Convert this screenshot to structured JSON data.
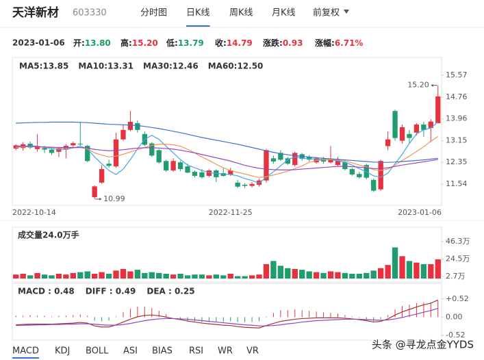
{
  "header": {
    "name": "天洋新材",
    "code": "603330",
    "tabs": [
      {
        "label": "分时图",
        "active": false
      },
      {
        "label": "日K线",
        "active": true
      },
      {
        "label": "周K线",
        "active": false
      },
      {
        "label": "月K线",
        "active": false
      },
      {
        "label": "前复权",
        "active": false
      }
    ]
  },
  "quote": {
    "date": "2023-01-06",
    "items": [
      {
        "label": "开:",
        "value": "13.80",
        "color": "#1a9e5f"
      },
      {
        "label": "高:",
        "value": "15.20",
        "color": "#e5323e"
      },
      {
        "label": "低:",
        "value": "13.79",
        "color": "#1a9e5f"
      },
      {
        "label": "收:",
        "value": "14.79",
        "color": "#e5323e"
      },
      {
        "label": "涨跌:",
        "value": "0.93",
        "color": "#e5323e"
      },
      {
        "label": "涨幅:",
        "value": "6.71%",
        "color": "#e5323e"
      }
    ]
  },
  "chart_data": [
    {
      "type": "candlestick",
      "categories": [
        "2022-10-14",
        null,
        null,
        null,
        null,
        null,
        null,
        null,
        null,
        null,
        null,
        null,
        null,
        null,
        null,
        null,
        null,
        null,
        null,
        null,
        null,
        null,
        null,
        null,
        null,
        null,
        null,
        null,
        null,
        null,
        "2022-11-25",
        null,
        null,
        null,
        null,
        null,
        null,
        null,
        null,
        null,
        null,
        null,
        null,
        null,
        null,
        null,
        null,
        null,
        null,
        null,
        null,
        null,
        null,
        null,
        null,
        null,
        null,
        null,
        null,
        "2023-01-06"
      ],
      "open": [
        12.86,
        12.88,
        13.04,
        12.84,
        12.88,
        12.82,
        12.74,
        12.82,
        12.98,
        13.04,
        12.96,
        11.06,
        11.6,
        12.3,
        12.2,
        13.2,
        13.55,
        13.8,
        13.4,
        13.05,
        12.8,
        12.4,
        12.05,
        12.35,
        12.2,
        12.0,
        11.98,
        11.85,
        12.05,
        11.95,
        11.9,
        11.6,
        11.52,
        11.48,
        11.52,
        11.68,
        12.5,
        12.7,
        12.5,
        12.25,
        12.65,
        12.55,
        12.35,
        12.48,
        12.35,
        12.25,
        12.35,
        12.1,
        11.92,
        12.25,
        11.7,
        11.35,
        12.95,
        14.25,
        13.15,
        13.4,
        13.45,
        13.75,
        13.62,
        13.8
      ],
      "high": [
        13.02,
        13.1,
        13.12,
        13.4,
        12.96,
        12.9,
        12.92,
        13.02,
        13.12,
        13.85,
        13.0,
        11.5,
        12.25,
        12.45,
        13.45,
        13.75,
        14.25,
        13.9,
        13.5,
        13.1,
        12.85,
        12.45,
        12.5,
        12.4,
        12.3,
        12.05,
        12.1,
        12.1,
        12.1,
        12.15,
        12.15,
        11.7,
        11.58,
        11.62,
        11.75,
        12.85,
        12.6,
        12.8,
        12.55,
        12.75,
        12.7,
        12.62,
        12.55,
        12.55,
        12.95,
        12.55,
        12.4,
        12.15,
        12.0,
        12.3,
        11.75,
        12.45,
        13.5,
        14.3,
        13.75,
        13.55,
        13.8,
        13.85,
        13.95,
        15.2
      ],
      "low": [
        12.8,
        12.78,
        12.84,
        12.75,
        12.7,
        12.62,
        12.55,
        12.5,
        12.92,
        12.96,
        12.35,
        10.99,
        11.55,
        12.15,
        12.15,
        13.15,
        13.5,
        13.45,
        12.95,
        12.55,
        12.3,
        12.0,
        12.0,
        12.02,
        11.95,
        11.8,
        11.75,
        11.8,
        11.62,
        11.82,
        11.85,
        11.4,
        11.4,
        11.42,
        11.45,
        11.6,
        12.3,
        12.4,
        12.25,
        12.2,
        12.42,
        12.38,
        12.3,
        12.3,
        12.3,
        12.2,
        12.05,
        11.85,
        11.75,
        11.72,
        11.25,
        11.3,
        12.8,
        13.15,
        13.05,
        13.05,
        13.35,
        13.3,
        13.1,
        13.79
      ],
      "close": [
        12.98,
        13.02,
        12.9,
        12.92,
        12.82,
        12.7,
        12.86,
        12.96,
        13.06,
        13.02,
        12.4,
        11.46,
        12.1,
        12.22,
        13.2,
        13.55,
        13.85,
        13.55,
        13.0,
        12.6,
        12.35,
        12.05,
        12.4,
        12.1,
        11.97,
        11.85,
        11.8,
        12.05,
        11.8,
        11.85,
        12.05,
        11.45,
        11.48,
        11.55,
        11.68,
        12.8,
        12.38,
        12.45,
        12.3,
        12.7,
        12.48,
        12.45,
        12.5,
        12.38,
        12.48,
        12.45,
        12.1,
        11.9,
        11.8,
        11.78,
        11.3,
        12.4,
        13.2,
        13.25,
        13.65,
        13.25,
        13.75,
        13.55,
        13.86,
        14.79
      ],
      "up_color": "#e5323e",
      "down_color": "#1f9d6e",
      "max_label": "15.20",
      "min_label": "10.99",
      "series": [
        {
          "name": "MA5:13.85",
          "color": "#3fa7e6",
          "values": [
            12.92,
            12.95,
            12.96,
            12.95,
            12.9,
            12.86,
            12.82,
            12.84,
            12.88,
            12.95,
            12.85,
            12.55,
            12.3,
            12.05,
            11.9,
            12.1,
            12.45,
            12.85,
            13.2,
            13.35,
            13.2,
            12.95,
            12.7,
            12.45,
            12.25,
            12.15,
            12.05,
            11.97,
            11.94,
            11.92,
            11.9,
            11.85,
            11.75,
            11.68,
            11.58,
            11.8,
            12.0,
            12.22,
            12.45,
            12.55,
            12.5,
            12.48,
            12.47,
            12.45,
            12.45,
            12.4,
            12.35,
            12.25,
            12.12,
            12.0,
            11.85,
            11.8,
            11.95,
            12.3,
            12.65,
            13.05,
            13.4,
            13.55,
            13.62,
            13.85
          ]
        },
        {
          "name": "MA10:13.31",
          "color": "#f0945a",
          "values": [
            12.9,
            12.92,
            12.93,
            12.92,
            12.91,
            12.9,
            12.88,
            12.88,
            12.89,
            12.9,
            12.85,
            12.7,
            12.62,
            12.55,
            12.58,
            12.65,
            12.73,
            12.82,
            12.9,
            12.98,
            13.02,
            13.02,
            13.0,
            12.95,
            12.83,
            12.7,
            12.55,
            12.42,
            12.28,
            12.15,
            12.05,
            11.98,
            11.92,
            11.85,
            11.79,
            11.82,
            11.88,
            11.95,
            12.02,
            12.12,
            12.22,
            12.35,
            12.42,
            12.44,
            12.45,
            12.43,
            12.4,
            12.33,
            12.25,
            12.18,
            12.08,
            12.05,
            12.1,
            12.25,
            12.42,
            12.58,
            12.75,
            12.93,
            13.13,
            13.31
          ]
        },
        {
          "name": "MA30:12.46",
          "color": "#9b45c2",
          "values": [
            12.95,
            12.95,
            12.94,
            12.93,
            12.92,
            12.91,
            12.9,
            12.9,
            12.9,
            12.9,
            12.88,
            12.83,
            12.8,
            12.78,
            12.79,
            12.82,
            12.85,
            12.88,
            12.89,
            12.89,
            12.88,
            12.86,
            12.84,
            12.8,
            12.75,
            12.7,
            12.64,
            12.58,
            12.52,
            12.46,
            12.4,
            12.32,
            12.24,
            12.18,
            12.13,
            12.1,
            12.08,
            12.07,
            12.07,
            12.08,
            12.1,
            12.12,
            12.14,
            12.16,
            12.18,
            12.2,
            12.2,
            12.19,
            12.17,
            12.15,
            12.12,
            12.12,
            12.15,
            12.2,
            12.25,
            12.29,
            12.33,
            12.37,
            12.41,
            12.46
          ]
        },
        {
          "name": "MA60:12.50",
          "color": "#3d6fd9",
          "values": [
            13.8,
            13.81,
            13.82,
            13.83,
            13.83,
            13.84,
            13.84,
            13.84,
            13.84,
            13.83,
            13.82,
            13.8,
            13.78,
            13.76,
            13.75,
            13.74,
            13.73,
            13.71,
            13.68,
            13.64,
            13.6,
            13.55,
            13.5,
            13.45,
            13.39,
            13.33,
            13.27,
            13.22,
            13.17,
            13.12,
            13.07,
            13.02,
            12.96,
            12.9,
            12.84,
            12.78,
            12.72,
            12.67,
            12.63,
            12.6,
            12.57,
            12.55,
            12.52,
            12.5,
            12.48,
            12.46,
            12.44,
            12.42,
            12.4,
            12.38,
            12.36,
            12.35,
            12.35,
            12.36,
            12.38,
            12.4,
            12.42,
            12.44,
            12.47,
            12.5
          ]
        }
      ],
      "ylim": [
        10.81,
        16.13
      ],
      "yticks": [
        15.57,
        14.76,
        13.96,
        13.15,
        12.35,
        11.54
      ]
    },
    {
      "type": "bar",
      "title": "成交量24.0万手",
      "values": [
        5,
        6,
        4,
        7,
        5,
        4,
        6,
        5,
        7,
        8,
        9,
        6,
        8,
        6,
        10,
        12,
        9,
        11,
        7,
        8,
        7,
        6,
        5,
        6,
        4,
        5,
        5,
        4,
        5,
        4,
        6,
        3,
        3,
        4,
        5,
        18,
        22,
        16,
        13,
        12,
        11,
        9,
        8,
        7,
        9,
        8,
        7,
        6,
        6,
        7,
        10,
        13,
        17,
        39,
        28,
        22,
        20,
        18,
        18,
        24
      ],
      "ylim": [
        0,
        57.4
      ],
      "yticks": [
        {
          "value": 46.3,
          "label": "46.3万"
        },
        {
          "value": 24.5,
          "label": "24.5万"
        },
        {
          "value": 2.7,
          "label": "2.7万"
        }
      ]
    },
    {
      "type": "macd",
      "up_color": "#e5323e",
      "down_color": "#1f9d6e",
      "series": [
        {
          "name": "MACD : 0.48",
          "color": "#222222",
          "values": [
            0.04,
            0.04,
            0.06,
            0.04,
            0.04,
            0.02,
            0.04,
            0.04,
            0.06,
            0.08,
            0.04,
            -0.1,
            -0.12,
            -0.1,
            0.02,
            0.14,
            0.24,
            0.3,
            0.3,
            0.26,
            0.18,
            0.08,
            0.0,
            -0.04,
            -0.1,
            -0.12,
            -0.14,
            -0.14,
            -0.14,
            -0.14,
            -0.12,
            -0.14,
            -0.14,
            -0.14,
            -0.12,
            0.02,
            0.12,
            0.2,
            0.2,
            0.22,
            0.2,
            0.18,
            0.16,
            0.14,
            0.12,
            0.1,
            0.06,
            0.02,
            -0.02,
            -0.06,
            -0.12,
            -0.06,
            0.06,
            0.22,
            0.32,
            0.36,
            0.4,
            0.42,
            0.42,
            0.48
          ]
        },
        {
          "name": "DIFF : 0.49",
          "color": "#a8322a",
          "values": [
            -0.22,
            -0.21,
            -0.2,
            -0.2,
            -0.2,
            -0.2,
            -0.19,
            -0.18,
            -0.17,
            -0.15,
            -0.17,
            -0.25,
            -0.28,
            -0.28,
            -0.22,
            -0.14,
            -0.06,
            0.01,
            0.05,
            0.06,
            0.04,
            0.0,
            -0.04,
            -0.07,
            -0.11,
            -0.14,
            -0.17,
            -0.19,
            -0.21,
            -0.23,
            -0.24,
            -0.27,
            -0.29,
            -0.3,
            -0.31,
            -0.24,
            -0.18,
            -0.12,
            -0.09,
            -0.06,
            -0.04,
            -0.03,
            -0.02,
            -0.02,
            -0.02,
            -0.02,
            -0.03,
            -0.05,
            -0.07,
            -0.1,
            -0.14,
            -0.12,
            -0.05,
            0.06,
            0.15,
            0.22,
            0.29,
            0.35,
            0.4,
            0.49
          ]
        },
        {
          "name": "DEA : 0.25",
          "color": "#8e44c4",
          "values": [
            -0.24,
            -0.23,
            -0.23,
            -0.22,
            -0.22,
            -0.21,
            -0.21,
            -0.2,
            -0.2,
            -0.19,
            -0.19,
            -0.2,
            -0.22,
            -0.23,
            -0.23,
            -0.21,
            -0.18,
            -0.14,
            -0.1,
            -0.07,
            -0.05,
            -0.04,
            -0.04,
            -0.05,
            -0.06,
            -0.08,
            -0.1,
            -0.12,
            -0.14,
            -0.16,
            -0.18,
            -0.2,
            -0.22,
            -0.23,
            -0.25,
            -0.25,
            -0.24,
            -0.22,
            -0.19,
            -0.17,
            -0.14,
            -0.12,
            -0.1,
            -0.09,
            -0.08,
            -0.07,
            -0.06,
            -0.06,
            -0.06,
            -0.07,
            -0.08,
            -0.09,
            -0.08,
            -0.05,
            -0.01,
            0.04,
            0.09,
            0.14,
            0.19,
            0.25
          ]
        }
      ],
      "ylim": [
        -0.52,
        0.75
      ],
      "yticks": [
        {
          "value": 0.52,
          "label": "+0.52"
        },
        {
          "value": 0,
          "label": "0.00"
        },
        {
          "value": -0.52,
          "label": "-0.52"
        }
      ]
    }
  ],
  "indicator_tabs": [
    {
      "label": "MACD",
      "active": true
    },
    {
      "label": "KDJ",
      "active": false
    },
    {
      "label": "BOLL",
      "active": false
    },
    {
      "label": "ASI",
      "active": false
    },
    {
      "label": "BIAS",
      "active": false
    },
    {
      "label": "RSI",
      "active": false
    },
    {
      "label": "WR",
      "active": false
    },
    {
      "label": "VR",
      "active": false
    }
  ],
  "watermark": "头条 @寻龙点金YYDS"
}
